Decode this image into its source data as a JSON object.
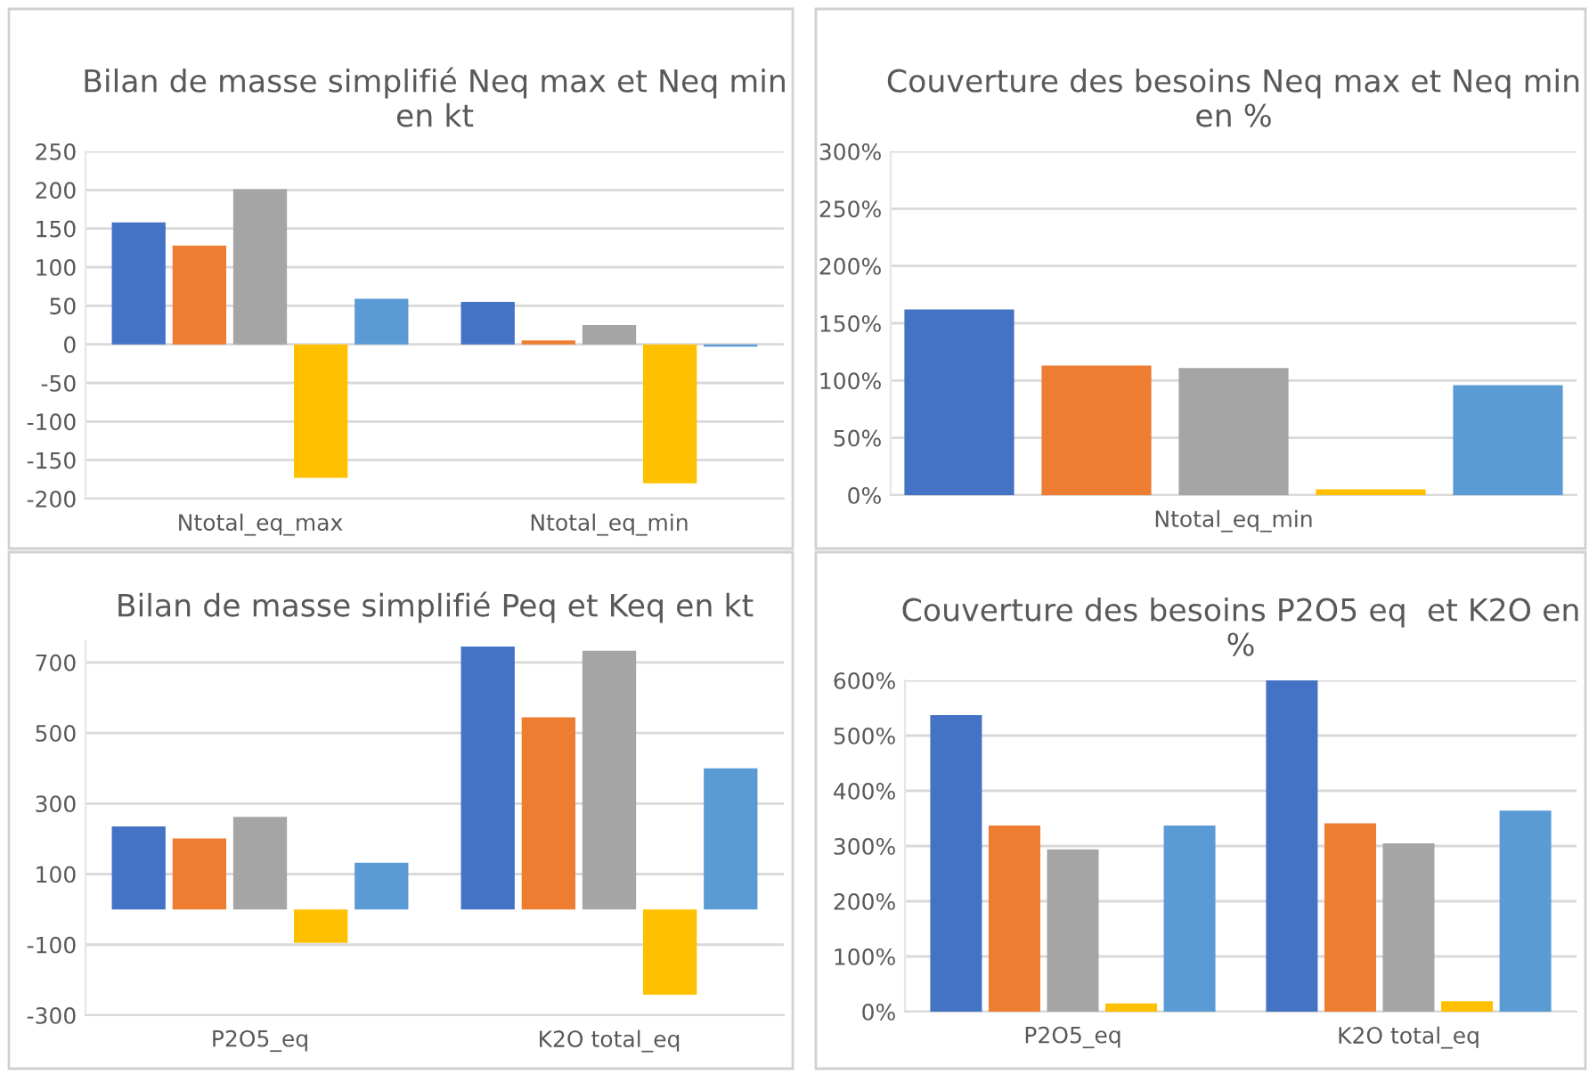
{
  "chart_data": [
    {
      "type": "bar",
      "title": "Bilan de masse simplifié Neq max et Neq min\nen kt",
      "categories": [
        "Ntotal_eq_max",
        "Ntotal_eq_min"
      ],
      "series": [
        {
          "color": "#4472c4",
          "values": [
            158,
            55
          ]
        },
        {
          "color": "#ed7d31",
          "values": [
            128,
            5
          ]
        },
        {
          "color": "#a5a5a5",
          "values": [
            201,
            25
          ]
        },
        {
          "color": "#ffc000",
          "values": [
            -173,
            -180
          ]
        },
        {
          "color": "#5b9bd5",
          "values": [
            59,
            -3
          ]
        }
      ],
      "ylim": [
        -200,
        250
      ],
      "yticks": [
        -200,
        -150,
        -100,
        -50,
        0,
        50,
        100,
        150,
        200,
        250
      ],
      "grid": "y",
      "legend": false
    },
    {
      "type": "bar",
      "title": "Couverture des besoins Neq max et Neq min\nen %",
      "categories": [
        null,
        null,
        "Ntotal_eq_min",
        null,
        null
      ],
      "series": [
        {
          "colors": [
            "#4472c4",
            "#ed7d31",
            "#a5a5a5",
            "#ffc000",
            "#5b9bd5"
          ],
          "values": [
            162,
            113,
            111,
            5,
            96
          ]
        }
      ],
      "ylim": [
        0,
        300
      ],
      "yticks": [
        {
          "value": 0,
          "label": "0%"
        },
        {
          "value": 50,
          "label": "50%"
        },
        {
          "value": 100,
          "label": "100%"
        },
        {
          "value": 150,
          "label": "150%"
        },
        {
          "value": 200,
          "label": "200%"
        },
        {
          "value": 250,
          "label": "250%"
        },
        {
          "value": 300,
          "label": "300%"
        }
      ],
      "grid": "y",
      "legend": false
    },
    {
      "type": "bar",
      "title": "Bilan de masse simplifié Peq et Keq en kt",
      "categories": [
        "P2O5_eq",
        "K2O total_eq"
      ],
      "series": [
        {
          "color": "#4472c4",
          "values": [
            235,
            745
          ]
        },
        {
          "color": "#ed7d31",
          "values": [
            201,
            544
          ]
        },
        {
          "color": "#a5a5a5",
          "values": [
            262,
            733
          ]
        },
        {
          "color": "#ffc000",
          "values": [
            -95,
            -242
          ]
        },
        {
          "color": "#5b9bd5",
          "values": [
            132,
            400
          ]
        }
      ],
      "ylim": [
        -300,
        760
      ],
      "yticks": [
        -300,
        -100,
        100,
        300,
        500,
        700
      ],
      "grid": "y",
      "legend": false
    },
    {
      "type": "bar",
      "title": "Couverture des besoins P2O5 eq  et K2O en\n%",
      "categories": [
        "P2O5_eq",
        "K2O total_eq"
      ],
      "series": [
        {
          "color": "#4472c4",
          "values": [
            537,
            600
          ]
        },
        {
          "color": "#ed7d31",
          "values": [
            337,
            341
          ]
        },
        {
          "color": "#a5a5a5",
          "values": [
            294,
            305
          ]
        },
        {
          "color": "#ffc000",
          "values": [
            15,
            19
          ]
        },
        {
          "color": "#5b9bd5",
          "values": [
            337,
            364
          ]
        }
      ],
      "ylim": [
        0,
        600
      ],
      "yticks": [
        {
          "value": 0,
          "label": "0%"
        },
        {
          "value": 100,
          "label": "100%"
        },
        {
          "value": 200,
          "label": "200%"
        },
        {
          "value": 300,
          "label": "300%"
        },
        {
          "value": 400,
          "label": "400%"
        },
        {
          "value": 500,
          "label": "500%"
        },
        {
          "value": 600,
          "label": "600%"
        }
      ],
      "grid": "y",
      "legend": false
    }
  ]
}
